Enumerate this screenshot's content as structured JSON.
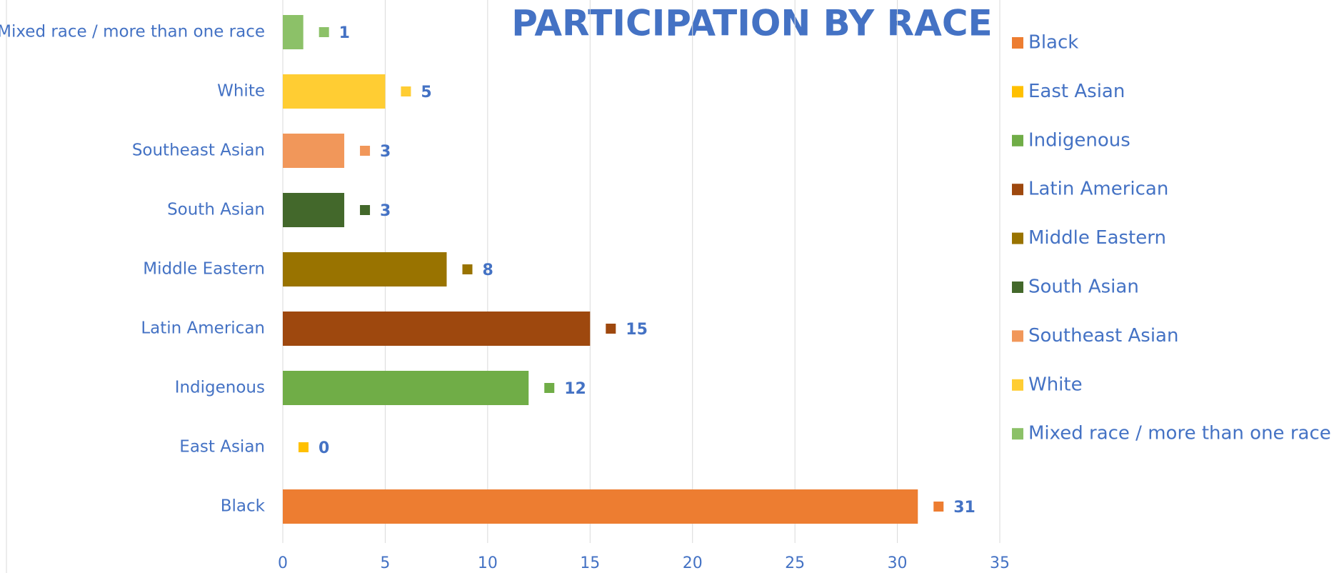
{
  "chart_data": {
    "type": "barh",
    "title": "PARTICIPATION BY RACE",
    "categories": [
      "Black",
      "East Asian",
      "Indigenous",
      "Latin American",
      "Middle Eastern",
      "South Asian",
      "Southeast Asian",
      "White",
      "Mixed race / more than one race"
    ],
    "values": [
      31,
      0,
      12,
      15,
      8,
      3,
      3,
      5,
      1
    ],
    "colors": [
      "#ed7d31",
      "#ffc000",
      "#70ad47",
      "#9e480e",
      "#997300",
      "#43682b",
      "#f1975a",
      "#ffcd33",
      "#8cc168"
    ],
    "xlim": [
      0,
      35
    ],
    "xticks": [
      0,
      5,
      10,
      15,
      20,
      25,
      30,
      35
    ],
    "grid": true,
    "legend": "right"
  }
}
